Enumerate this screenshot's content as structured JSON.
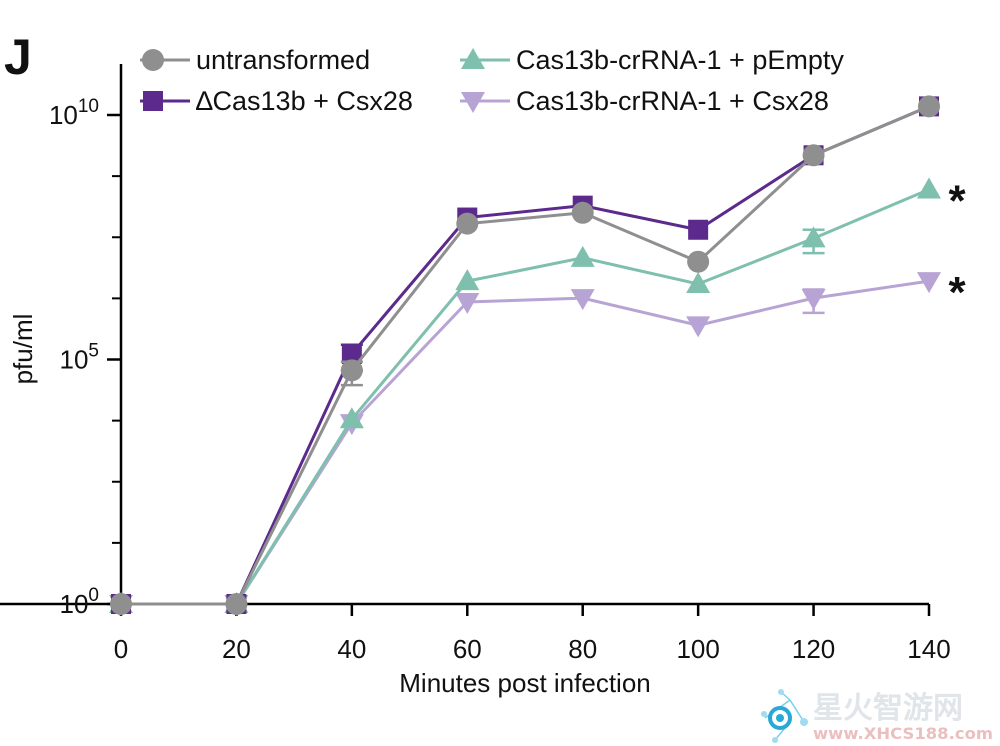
{
  "chart_data": {
    "type": "line",
    "panel_label": "J",
    "xlabel": "Minutes post infection",
    "ylabel": "pfu/ml",
    "x": [
      0,
      20,
      40,
      60,
      80,
      100,
      120,
      140
    ],
    "xlim": [
      0,
      140
    ],
    "y_scale": "log",
    "ylim": [
      1,
      20000000000
    ],
    "x_tick_labels": [
      "0",
      "20",
      "40",
      "60",
      "80",
      "100",
      "120",
      "140"
    ],
    "y_tick_labels": [
      {
        "value": 1,
        "base": "10",
        "exp": "0"
      },
      {
        "value": 100000,
        "base": "10",
        "exp": "5"
      },
      {
        "value": 10000000000,
        "base": "10",
        "exp": "10"
      }
    ],
    "legend_position": "top",
    "series": [
      {
        "name": "untransformed",
        "marker": "circle",
        "color": "#8f8f8f",
        "values": [
          1,
          1,
          60000,
          60000000,
          100000000,
          10000000,
          1500000000,
          15000000000
        ],
        "error": [
          0,
          0,
          30000,
          0,
          0,
          0,
          0,
          0
        ]
      },
      {
        "name": "∆Cas13b + Csx28",
        "marker": "square",
        "color": "#5b2a8c",
        "values": [
          1,
          1,
          130000,
          80000000,
          140000000,
          45000000,
          1500000000,
          15000000000
        ],
        "error": [
          0,
          0,
          70000,
          0,
          0,
          0,
          0,
          0
        ]
      },
      {
        "name": "Cas13b-crRNA-1 + pEmpty",
        "marker": "triangle-up",
        "color": "#7fbfae",
        "values": [
          1,
          1,
          6000,
          4000000,
          12000000,
          3500000,
          30000000,
          300000000
        ],
        "error": [
          0,
          0,
          0,
          0,
          0,
          0,
          15000000,
          0
        ]
      },
      {
        "name": "Cas13b-crRNA-1 + Csx28",
        "marker": "triangle-down",
        "color": "#b8a4d4",
        "values": [
          1,
          1,
          5000,
          1500000,
          1800000,
          500000,
          1800000,
          4000000
        ],
        "error": [
          0,
          0,
          0,
          0,
          0,
          0,
          900000,
          0
        ]
      }
    ],
    "annotations": [
      {
        "text": "*",
        "series": 2
      },
      {
        "text": "*",
        "series": 3
      }
    ]
  },
  "watermark": {
    "main_text": "星火智游网",
    "url_text": "www.XHCS188.com"
  }
}
